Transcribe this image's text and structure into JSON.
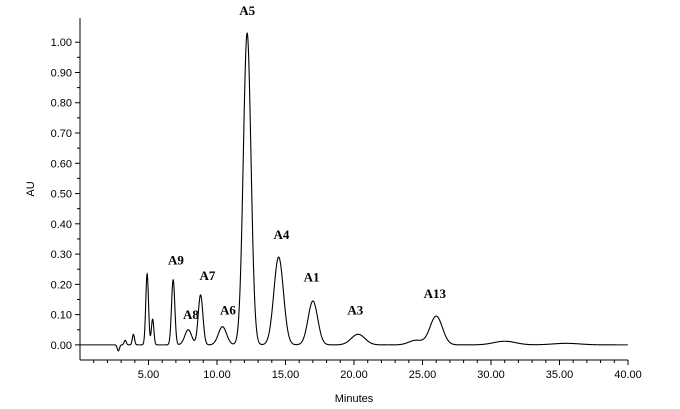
{
  "chart_data": {
    "type": "line",
    "title": "",
    "xlabel": "Minutes",
    "ylabel": "AU",
    "xlim": [
      0,
      40
    ],
    "ylim": [
      -0.05,
      1.08
    ],
    "grid": false,
    "x_ticks": [
      5,
      10,
      15,
      20,
      25,
      30,
      35,
      40
    ],
    "x_tick_labels": [
      "5.00",
      "10.00",
      "15.00",
      "20.00",
      "25.00",
      "30.00",
      "35.00",
      "40.00"
    ],
    "y_ticks": [
      0.0,
      0.1,
      0.2,
      0.3,
      0.4,
      0.5,
      0.6,
      0.7,
      0.8,
      0.9,
      1.0
    ],
    "y_tick_labels": [
      "0.00",
      "0.10",
      "0.20",
      "0.30",
      "0.40",
      "0.50",
      "0.60",
      "0.70",
      "0.80",
      "0.90",
      "1.00"
    ],
    "series": [
      {
        "color": "#000000",
        "baseline": 0.0,
        "peaks": [
          {
            "rt": 2.8,
            "height": -0.02,
            "width": 0.08
          },
          {
            "rt": 3.3,
            "height": 0.015,
            "width": 0.08
          },
          {
            "rt": 3.9,
            "height": 0.035,
            "width": 0.08
          },
          {
            "rt": 4.9,
            "height": 0.235,
            "width": 0.1
          },
          {
            "rt": 5.3,
            "height": 0.085,
            "width": 0.09
          },
          {
            "rt": 6.8,
            "height": 0.215,
            "width": 0.12
          },
          {
            "rt": 7.9,
            "height": 0.05,
            "width": 0.25
          },
          {
            "rt": 8.8,
            "height": 0.165,
            "width": 0.17
          },
          {
            "rt": 10.4,
            "height": 0.06,
            "width": 0.3
          },
          {
            "rt": 12.2,
            "height": 1.03,
            "width": 0.28
          },
          {
            "rt": 14.5,
            "height": 0.29,
            "width": 0.35
          },
          {
            "rt": 17.0,
            "height": 0.145,
            "width": 0.35
          },
          {
            "rt": 20.3,
            "height": 0.035,
            "width": 0.5
          },
          {
            "rt": 24.5,
            "height": 0.015,
            "width": 0.5
          },
          {
            "rt": 26.0,
            "height": 0.095,
            "width": 0.45
          },
          {
            "rt": 31.0,
            "height": 0.012,
            "width": 0.8
          },
          {
            "rt": 35.5,
            "height": 0.005,
            "width": 1.0
          }
        ]
      }
    ],
    "annotations": [
      {
        "text": "A9",
        "x": 7.0,
        "y": 0.265
      },
      {
        "text": "A8",
        "x": 8.1,
        "y": 0.085
      },
      {
        "text": "A7",
        "x": 9.3,
        "y": 0.215
      },
      {
        "text": "A6",
        "x": 10.8,
        "y": 0.1
      },
      {
        "text": "A5",
        "x": 12.2,
        "y": 1.09
      },
      {
        "text": "A4",
        "x": 14.7,
        "y": 0.35
      },
      {
        "text": "A1",
        "x": 16.9,
        "y": 0.21
      },
      {
        "text": "A3",
        "x": 20.1,
        "y": 0.1
      },
      {
        "text": "A13",
        "x": 25.9,
        "y": 0.155
      }
    ]
  }
}
